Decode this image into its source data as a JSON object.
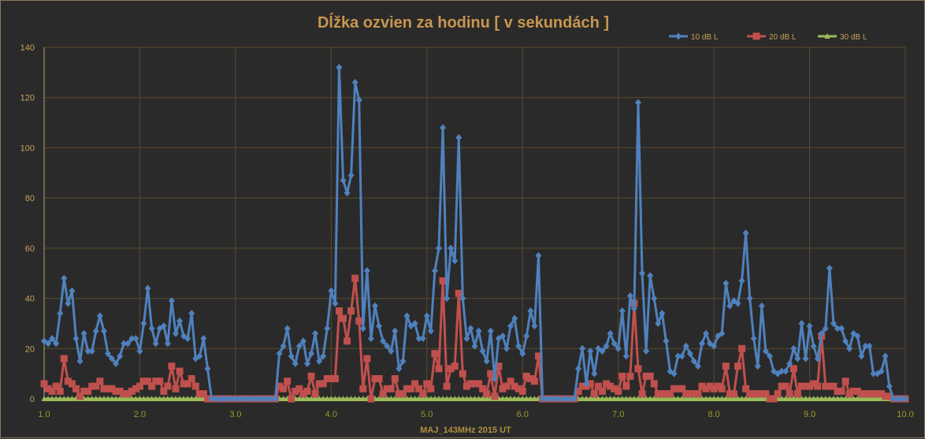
{
  "chart_data": {
    "type": "line",
    "title": "Dĺžka ozvien za hodinu [ v sekundách ]",
    "xlabel": "MAJ_143MHz  2015  UT",
    "ylabel": "",
    "xlim": [
      1.0,
      10.0
    ],
    "ylim": [
      0,
      140
    ],
    "x_step": 0.041667,
    "xticks": [
      "1.0",
      "2.0",
      "3.0",
      "4.0",
      "5.0",
      "6.0",
      "7.0",
      "8.0",
      "9.0",
      "10.0"
    ],
    "yticks": [
      "0",
      "20",
      "40",
      "60",
      "80",
      "100",
      "120",
      "140"
    ],
    "grid": true,
    "legend_position": "top-right",
    "colors": {
      "10 dB L": "#4f81bd",
      "20 dB L": "#c0504d",
      "30 dB L": "#9bbb59"
    },
    "series": [
      {
        "name": "10 dB L",
        "marker": "diamond",
        "values": [
          23,
          22,
          24,
          22,
          34,
          48,
          38,
          43,
          24,
          15,
          26,
          19,
          19,
          27,
          33,
          27,
          18,
          16,
          14,
          17,
          22,
          22,
          24,
          24,
          19,
          30,
          44,
          28,
          22,
          28,
          29,
          22,
          39,
          26,
          31,
          25,
          24,
          34,
          16,
          17,
          24,
          12,
          0,
          0,
          0,
          0,
          0,
          0,
          0,
          0,
          0,
          0,
          0,
          0,
          0,
          0,
          0,
          0,
          0,
          18,
          21,
          28,
          17,
          14,
          21,
          23,
          14,
          18,
          26,
          15,
          17,
          28,
          43,
          38,
          132,
          87,
          82,
          89,
          126,
          119,
          28,
          51,
          24,
          37,
          29,
          23,
          21,
          19,
          27,
          12,
          15,
          33,
          29,
          30,
          24,
          24,
          33,
          27,
          51,
          60,
          108,
          40,
          60,
          55,
          104,
          40,
          24,
          28,
          21,
          27,
          19,
          15,
          27,
          8,
          24,
          25,
          20,
          29,
          32,
          21,
          18,
          25,
          35,
          29,
          57,
          0,
          0,
          0,
          0,
          0,
          0,
          0,
          0,
          0,
          12,
          20,
          6,
          19,
          10,
          20,
          19,
          21,
          26,
          22,
          20,
          35,
          17,
          41,
          36,
          118,
          50,
          19,
          49,
          40,
          30,
          34,
          23,
          11,
          10,
          17,
          17,
          21,
          18,
          15,
          13,
          22,
          26,
          22,
          21,
          25,
          26,
          46,
          37,
          39,
          38,
          47,
          66,
          40,
          24,
          13,
          37,
          19,
          17,
          11,
          10,
          11,
          11,
          14,
          20,
          16,
          30,
          16,
          29,
          21,
          16,
          26,
          28,
          52,
          30,
          28,
          28,
          23,
          20,
          26,
          25,
          17,
          21,
          21,
          10,
          10,
          11,
          17,
          5,
          0,
          0,
          0,
          0
        ]
      },
      {
        "name": "20 dB L",
        "marker": "square",
        "values": [
          6,
          4,
          3,
          5,
          3,
          16,
          7,
          6,
          4,
          1,
          3,
          3,
          5,
          5,
          7,
          4,
          4,
          4,
          3,
          3,
          2,
          2,
          3,
          4,
          5,
          7,
          7,
          5,
          7,
          7,
          3,
          5,
          13,
          4,
          11,
          6,
          6,
          8,
          5,
          2,
          2,
          0,
          0,
          0,
          0,
          0,
          0,
          0,
          0,
          0,
          0,
          0,
          0,
          0,
          0,
          0,
          0,
          0,
          0,
          5,
          4,
          7,
          0,
          3,
          4,
          2,
          3,
          9,
          2,
          6,
          6,
          8,
          8,
          8,
          35,
          32,
          23,
          35,
          48,
          31,
          4,
          16,
          0,
          8,
          8,
          2,
          4,
          4,
          8,
          2,
          2,
          4,
          4,
          6,
          4,
          2,
          6,
          4,
          18,
          12,
          47,
          5,
          12,
          13,
          42,
          10,
          5,
          6,
          6,
          6,
          4,
          2,
          10,
          1,
          13,
          4,
          5,
          7,
          5,
          4,
          3,
          9,
          8,
          7,
          17,
          0,
          0,
          0,
          0,
          0,
          0,
          0,
          0,
          0,
          3,
          5,
          5,
          6,
          2,
          5,
          3,
          6,
          5,
          4,
          3,
          9,
          5,
          9,
          38,
          12,
          2,
          9,
          9,
          6,
          2,
          2,
          2,
          2,
          4,
          4,
          4,
          2,
          2,
          2,
          2,
          5,
          4,
          5,
          4,
          5,
          4,
          13,
          2,
          2,
          13,
          20,
          4,
          2,
          2,
          2,
          2,
          2,
          0,
          0,
          2,
          5,
          5,
          2,
          12,
          2,
          5,
          5,
          5,
          6,
          5,
          25,
          5,
          5,
          5,
          3,
          3,
          7,
          2,
          3,
          3,
          2,
          2,
          2,
          2,
          2,
          2,
          1,
          1,
          0,
          0,
          0,
          0
        ]
      },
      {
        "name": "30 dB L",
        "marker": "triangle",
        "values": "zeros"
      }
    ]
  }
}
